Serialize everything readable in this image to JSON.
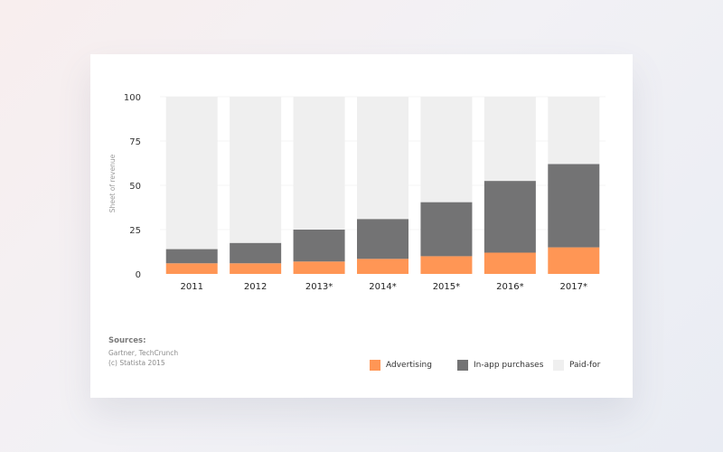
{
  "chart_data": {
    "type": "bar",
    "stacked": true,
    "categories": [
      "2011",
      "2012",
      "2013*",
      "2014*",
      "2015*",
      "2016*",
      "2017*"
    ],
    "series": [
      {
        "name": "Advertising",
        "color": "#ff9655",
        "values": [
          6,
          6,
          7,
          8.5,
          10,
          12,
          15
        ]
      },
      {
        "name": "In-app purchases",
        "color": "#737374",
        "values": [
          8,
          11.5,
          18,
          22.5,
          30.5,
          40.5,
          47
        ]
      },
      {
        "name": "Paid-for",
        "color": "#efefef",
        "values": [
          86,
          82.5,
          75,
          69,
          59.5,
          47.5,
          38
        ]
      }
    ],
    "ylabel": "Sheet of revenue",
    "yticks": [
      0,
      25,
      50,
      75,
      100
    ],
    "ylim": [
      0,
      100
    ],
    "grid": true,
    "legend": "bottom-right"
  },
  "sources": {
    "title": "Sources:",
    "line1": "Gartner, TechCrunch",
    "line2": "(c) Statista 2015"
  }
}
